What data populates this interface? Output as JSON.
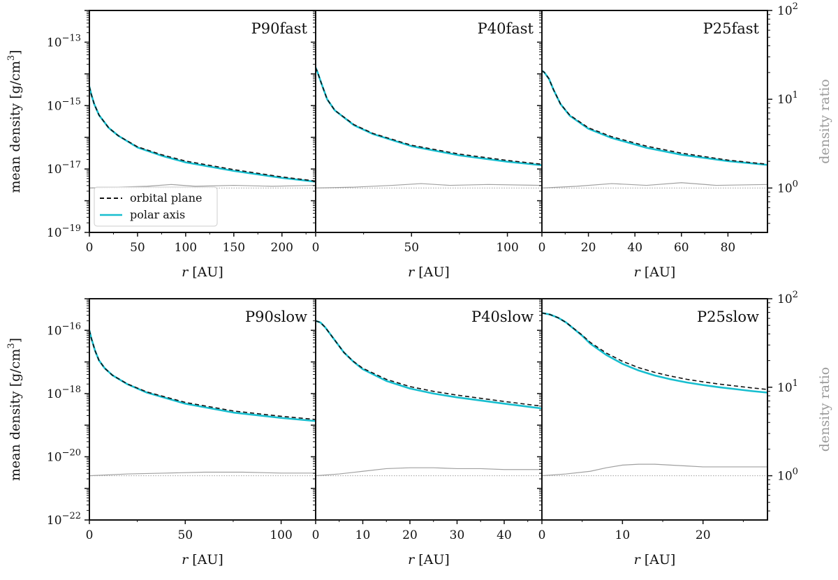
{
  "chart_data": [
    {
      "id": "P90fast",
      "type": "line",
      "title": "P90fast",
      "xlabel_italic": "r",
      "xlabel_unit": " [AU]",
      "xlim": [
        0,
        235
      ],
      "xticks": [
        0,
        50,
        100,
        150,
        200
      ],
      "ylim_exp": [
        -19,
        -12
      ],
      "yticks_exp": [
        -13,
        -15,
        -17,
        -19
      ],
      "y2lim_exp": [
        -0.5,
        2
      ],
      "y2ticks_exp": [
        0,
        1,
        2
      ],
      "ylabel": "mean density [g/cm",
      "ylabel_sup": "3",
      "ylabel_close": "]",
      "y2label": "density ratio",
      "series": [
        {
          "name": "orbital plane",
          "x": [
            0,
            2,
            5,
            10,
            20,
            30,
            50,
            75,
            100,
            150,
            200,
            235
          ],
          "log10_y": [
            -14.4,
            -14.65,
            -14.95,
            -15.3,
            -15.7,
            -15.95,
            -16.3,
            -16.55,
            -16.75,
            -17.02,
            -17.25,
            -17.38
          ]
        },
        {
          "name": "polar axis",
          "x": [
            0,
            2,
            5,
            10,
            20,
            30,
            50,
            75,
            100,
            150,
            200,
            235
          ],
          "log10_y": [
            -14.4,
            -14.65,
            -14.95,
            -15.3,
            -15.7,
            -15.95,
            -16.32,
            -16.58,
            -16.79,
            -17.06,
            -17.28,
            -17.4
          ]
        },
        {
          "name": "density ratio",
          "x": [
            0,
            30,
            60,
            85,
            110,
            150,
            190,
            235
          ],
          "log10_y2": [
            0.0,
            0.01,
            0.02,
            0.04,
            0.02,
            0.03,
            0.02,
            0.03
          ]
        }
      ]
    },
    {
      "id": "P40fast",
      "type": "line",
      "title": "P40fast",
      "xlabel_italic": "r",
      "xlabel_unit": " [AU]",
      "xlim": [
        0,
        118
      ],
      "xticks": [
        0,
        50,
        100
      ],
      "ylim_exp": [
        -19,
        -12
      ],
      "y2lim_exp": [
        -0.5,
        2
      ],
      "series": [
        {
          "name": "orbital plane",
          "x": [
            0,
            1,
            3,
            6,
            10,
            20,
            30,
            50,
            75,
            100,
            118
          ],
          "log10_y": [
            -13.8,
            -13.95,
            -14.3,
            -14.8,
            -15.15,
            -15.6,
            -15.88,
            -16.25,
            -16.53,
            -16.73,
            -16.85
          ]
        },
        {
          "name": "polar axis",
          "x": [
            0,
            1,
            3,
            6,
            10,
            20,
            30,
            50,
            75,
            100,
            118
          ],
          "log10_y": [
            -13.8,
            -13.95,
            -14.3,
            -14.8,
            -15.15,
            -15.62,
            -15.9,
            -16.28,
            -16.57,
            -16.77,
            -16.88
          ]
        },
        {
          "name": "density ratio",
          "x": [
            0,
            20,
            40,
            55,
            70,
            90,
            118
          ],
          "log10_y2": [
            0.0,
            0.01,
            0.03,
            0.05,
            0.03,
            0.04,
            0.03
          ]
        }
      ]
    },
    {
      "id": "P25fast",
      "type": "line",
      "title": "P25fast",
      "xlabel_italic": "r",
      "xlabel_unit": " [AU]",
      "xlim": [
        0,
        97
      ],
      "xticks": [
        0,
        20,
        40,
        60,
        80
      ],
      "ylim_exp": [
        -19,
        -12
      ],
      "y2lim_exp": [
        -0.5,
        2
      ],
      "series": [
        {
          "name": "orbital plane",
          "x": [
            0,
            1,
            3,
            5,
            8,
            12,
            20,
            30,
            45,
            60,
            80,
            97
          ],
          "log10_y": [
            -13.9,
            -13.95,
            -14.15,
            -14.5,
            -14.95,
            -15.3,
            -15.7,
            -15.98,
            -16.28,
            -16.5,
            -16.72,
            -16.85
          ]
        },
        {
          "name": "polar axis",
          "x": [
            0,
            1,
            3,
            5,
            8,
            12,
            20,
            30,
            45,
            60,
            80,
            97
          ],
          "log10_y": [
            -13.9,
            -13.95,
            -14.15,
            -14.5,
            -14.95,
            -15.32,
            -15.73,
            -16.02,
            -16.33,
            -16.55,
            -16.75,
            -16.87
          ]
        },
        {
          "name": "density ratio",
          "x": [
            0,
            15,
            30,
            45,
            60,
            75,
            97
          ],
          "log10_y2": [
            0.0,
            0.02,
            0.05,
            0.03,
            0.06,
            0.03,
            0.04
          ]
        }
      ]
    },
    {
      "id": "P90slow",
      "type": "line",
      "title": "P90slow",
      "xlabel_italic": "r",
      "xlabel_unit": " [AU]",
      "xlim": [
        0,
        118
      ],
      "xticks": [
        0,
        50,
        100
      ],
      "ylim_exp": [
        -22,
        -15
      ],
      "yticks_exp": [
        -16,
        -18,
        -20,
        -22
      ],
      "y2lim_exp": [
        -0.5,
        2
      ],
      "y2ticks_exp": [
        0,
        1,
        2
      ],
      "ylabel": "mean density [g/cm",
      "ylabel_sup": "3",
      "ylabel_close": "]",
      "y2label": "density ratio",
      "series": [
        {
          "name": "orbital plane",
          "x": [
            0,
            1,
            3,
            5,
            8,
            12,
            20,
            30,
            50,
            75,
            100,
            118
          ],
          "log10_y": [
            -16.0,
            -16.25,
            -16.65,
            -16.95,
            -17.2,
            -17.42,
            -17.7,
            -17.95,
            -18.28,
            -18.55,
            -18.72,
            -18.82
          ]
        },
        {
          "name": "polar axis",
          "x": [
            0,
            1,
            3,
            5,
            8,
            12,
            20,
            30,
            50,
            75,
            100,
            118
          ],
          "log10_y": [
            -16.0,
            -16.25,
            -16.65,
            -16.95,
            -17.2,
            -17.42,
            -17.71,
            -17.97,
            -18.32,
            -18.6,
            -18.77,
            -18.87
          ]
        },
        {
          "name": "density ratio",
          "x": [
            0,
            20,
            40,
            60,
            80,
            100,
            118
          ],
          "log10_y2": [
            0.0,
            0.02,
            0.03,
            0.04,
            0.04,
            0.03,
            0.03
          ]
        }
      ]
    },
    {
      "id": "P40slow",
      "type": "line",
      "title": "P40slow",
      "xlabel_italic": "r",
      "xlabel_unit": " [AU]",
      "xlim": [
        0,
        48
      ],
      "xticks": [
        0,
        10,
        20,
        30,
        40
      ],
      "ylim_exp": [
        -22,
        -15
      ],
      "y2lim_exp": [
        -0.5,
        2
      ],
      "series": [
        {
          "name": "orbital plane",
          "x": [
            0,
            1,
            2,
            4,
            6,
            8,
            10,
            15,
            20,
            25,
            30,
            35,
            40,
            48
          ],
          "log10_y": [
            -15.7,
            -15.75,
            -15.9,
            -16.3,
            -16.7,
            -16.98,
            -17.2,
            -17.55,
            -17.78,
            -17.93,
            -18.05,
            -18.15,
            -18.25,
            -18.4
          ]
        },
        {
          "name": "polar axis",
          "x": [
            0,
            1,
            2,
            4,
            6,
            8,
            10,
            15,
            20,
            25,
            30,
            35,
            40,
            48
          ],
          "log10_y": [
            -15.7,
            -15.75,
            -15.9,
            -16.3,
            -16.7,
            -16.99,
            -17.23,
            -17.6,
            -17.84,
            -18.0,
            -18.12,
            -18.22,
            -18.32,
            -18.47
          ]
        },
        {
          "name": "density ratio",
          "x": [
            0,
            5,
            10,
            15,
            20,
            25,
            30,
            35,
            40,
            48
          ],
          "log10_y2": [
            0.0,
            0.02,
            0.05,
            0.08,
            0.09,
            0.09,
            0.08,
            0.08,
            0.07,
            0.07
          ]
        }
      ]
    },
    {
      "id": "P25slow",
      "type": "line",
      "title": "P25slow",
      "xlabel_italic": "r",
      "xlabel_unit": " [AU]",
      "xlim": [
        0,
        28
      ],
      "xticks": [
        0,
        10,
        20
      ],
      "ylim_exp": [
        -22,
        -15
      ],
      "y2lim_exp": [
        -0.5,
        2
      ],
      "series": [
        {
          "name": "orbital plane",
          "x": [
            0,
            1,
            2,
            3,
            4,
            5,
            6,
            8,
            10,
            12,
            14,
            16,
            18,
            20,
            22,
            24,
            26,
            28
          ],
          "log10_y": [
            -15.45,
            -15.5,
            -15.6,
            -15.75,
            -15.95,
            -16.15,
            -16.38,
            -16.72,
            -16.98,
            -17.18,
            -17.33,
            -17.45,
            -17.55,
            -17.63,
            -17.7,
            -17.76,
            -17.82,
            -17.87
          ]
        },
        {
          "name": "polar axis",
          "x": [
            0,
            1,
            2,
            3,
            4,
            5,
            6,
            8,
            10,
            12,
            14,
            16,
            18,
            20,
            22,
            24,
            26,
            28
          ],
          "log10_y": [
            -15.45,
            -15.5,
            -15.6,
            -15.75,
            -15.96,
            -16.17,
            -16.42,
            -16.78,
            -17.06,
            -17.27,
            -17.43,
            -17.55,
            -17.65,
            -17.73,
            -17.8,
            -17.86,
            -17.92,
            -17.97
          ]
        },
        {
          "name": "density ratio",
          "x": [
            0,
            3,
            6,
            8,
            10,
            12,
            14,
            16,
            18,
            20,
            22,
            24,
            26,
            28
          ],
          "log10_y2": [
            0.0,
            0.02,
            0.05,
            0.09,
            0.12,
            0.13,
            0.13,
            0.12,
            0.11,
            0.1,
            0.1,
            0.1,
            0.1,
            0.1
          ]
        }
      ]
    }
  ],
  "legend": {
    "items": [
      {
        "label": "orbital plane",
        "style": "dashed"
      },
      {
        "label": "polar axis",
        "style": "solid"
      }
    ]
  },
  "colors": {
    "orbital_plane": "#111111",
    "polar_axis": "#17becf",
    "ratio": "#a0a0a0",
    "axes": "#111111"
  }
}
